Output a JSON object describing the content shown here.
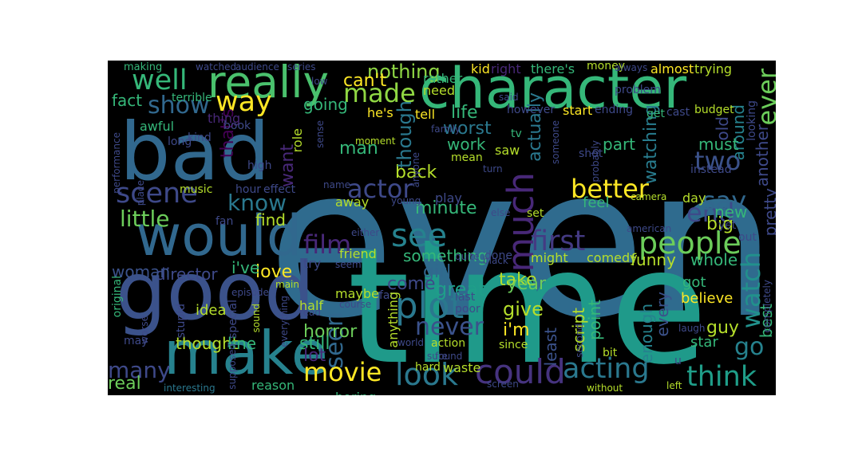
{
  "wordcloud": {
    "background": "#000000",
    "words": [
      {
        "text": "even",
        "color": "#2f6b8e"
      },
      {
        "text": "time",
        "color": "#1f9a8a"
      },
      {
        "text": "bad",
        "color": "#31688e"
      },
      {
        "text": "good",
        "color": "#3b528b"
      },
      {
        "text": "would",
        "color": "#31688e"
      },
      {
        "text": "character",
        "color": "#35b779"
      },
      {
        "text": "really",
        "color": "#4ac16d"
      },
      {
        "text": "make",
        "color": "#26828e"
      },
      {
        "text": "well",
        "color": "#35b779"
      },
      {
        "text": "way",
        "color": "#fde725"
      },
      {
        "text": "show",
        "color": "#31688e"
      },
      {
        "text": "scene",
        "color": "#3e4989"
      },
      {
        "text": "know",
        "color": "#2a788e"
      },
      {
        "text": "little",
        "color": "#6ccd5a"
      },
      {
        "text": "made",
        "color": "#90d743"
      },
      {
        "text": "much",
        "color": "#482878"
      },
      {
        "text": "see",
        "color": "#26828e"
      },
      {
        "text": "plot",
        "color": "#2a788e"
      },
      {
        "text": "movie",
        "color": "#fde725"
      },
      {
        "text": "look",
        "color": "#2a788e"
      },
      {
        "text": "could",
        "color": "#46337f"
      },
      {
        "text": "acting",
        "color": "#2a788e"
      },
      {
        "text": "think",
        "color": "#1f9e89"
      },
      {
        "text": "people",
        "color": "#6ccd5a"
      },
      {
        "text": "first",
        "color": "#443a83"
      },
      {
        "text": "end",
        "color": "#3e4a89"
      },
      {
        "text": "say",
        "color": "#31688e"
      },
      {
        "text": "better",
        "color": "#fde725"
      },
      {
        "text": "two",
        "color": "#3b528b"
      },
      {
        "text": "ever",
        "color": "#6ccd5a"
      },
      {
        "text": "watch",
        "color": "#21918c"
      },
      {
        "text": "go",
        "color": "#26828e"
      },
      {
        "text": "actor",
        "color": "#3e4989"
      },
      {
        "text": "film",
        "color": "#482878"
      },
      {
        "text": "never",
        "color": "#3b528b"
      },
      {
        "text": "seen",
        "color": "#31688e"
      },
      {
        "text": "many",
        "color": "#3e4989"
      },
      {
        "text": "nothing",
        "color": "#8fd744"
      },
      {
        "text": "can't",
        "color": "#fde725"
      },
      {
        "text": "going",
        "color": "#35b779"
      },
      {
        "text": "fact",
        "color": "#35b779"
      },
      {
        "text": "worst",
        "color": "#2a788e"
      },
      {
        "text": "life",
        "color": "#35b779"
      },
      {
        "text": "work",
        "color": "#35b779"
      },
      {
        "text": "man",
        "color": "#35b779"
      },
      {
        "text": "back",
        "color": "#b5de2b"
      },
      {
        "text": "though",
        "color": "#2a788e"
      },
      {
        "text": "actually",
        "color": "#2a788e"
      },
      {
        "text": "part",
        "color": "#35b779"
      },
      {
        "text": "watching",
        "color": "#287c8e"
      },
      {
        "text": "want",
        "color": "#482878"
      },
      {
        "text": "that's",
        "color": "#440154"
      },
      {
        "text": "find",
        "color": "#b5de2b"
      },
      {
        "text": "minute",
        "color": "#35b779"
      },
      {
        "text": "something",
        "color": "#35b779"
      },
      {
        "text": "girl",
        "color": "#31688e"
      },
      {
        "text": "love",
        "color": "#fde725"
      },
      {
        "text": "director",
        "color": "#3e4989"
      },
      {
        "text": "woman",
        "color": "#3b528b"
      },
      {
        "text": "i've",
        "color": "#35b779"
      },
      {
        "text": "come",
        "color": "#3e4989"
      },
      {
        "text": "great",
        "color": "#1f9e89"
      },
      {
        "text": "take",
        "color": "#b5de2b"
      },
      {
        "text": "year",
        "color": "#6ccd5a"
      },
      {
        "text": "give",
        "color": "#b5de2b"
      },
      {
        "text": "i'm",
        "color": "#fde725"
      },
      {
        "text": "horror",
        "color": "#6ccd5a"
      },
      {
        "text": "still",
        "color": "#35b779"
      },
      {
        "text": "lot",
        "color": "#482878"
      },
      {
        "text": "real",
        "color": "#6ccd5a"
      },
      {
        "text": "thought",
        "color": "#b5de2b"
      },
      {
        "text": "line",
        "color": "#35b779"
      },
      {
        "text": "funny",
        "color": "#b5de2b"
      },
      {
        "text": "whole",
        "color": "#35b779"
      },
      {
        "text": "best",
        "color": "#35b779"
      },
      {
        "text": "guy",
        "color": "#b5de2b"
      },
      {
        "text": "enough",
        "color": "#26828e"
      },
      {
        "text": "every",
        "color": "#3b528b"
      },
      {
        "text": "point",
        "color": "#35b779"
      },
      {
        "text": "script",
        "color": "#b5de2b"
      },
      {
        "text": "least",
        "color": "#3b528b"
      },
      {
        "text": "around",
        "color": "#26828e"
      },
      {
        "text": "old",
        "color": "#3e4989"
      },
      {
        "text": "must",
        "color": "#35b779"
      },
      {
        "text": "pretty",
        "color": "#3e4989"
      },
      {
        "text": "another",
        "color": "#3e4989"
      },
      {
        "text": "new",
        "color": "#35b779"
      },
      {
        "text": "big",
        "color": "#b5de2b"
      },
      {
        "text": "believe",
        "color": "#fde725"
      },
      {
        "text": "got",
        "color": "#35b779"
      },
      {
        "text": "star",
        "color": "#35b779"
      },
      {
        "text": "interesting",
        "color": "#2a788e"
      },
      {
        "text": "reason",
        "color": "#35b779"
      },
      {
        "text": "boring",
        "color": "#35b779"
      },
      {
        "text": "original",
        "color": "#35b779"
      },
      {
        "text": "performance",
        "color": "#3e4989"
      },
      {
        "text": "music",
        "color": "#b5de2b"
      },
      {
        "text": "awful",
        "color": "#35b779"
      },
      {
        "text": "long",
        "color": "#3e4989"
      },
      {
        "text": "kind",
        "color": "#3e4989"
      },
      {
        "text": "thing",
        "color": "#482878"
      },
      {
        "text": "terrible",
        "color": "#35b779"
      },
      {
        "text": "making",
        "color": "#35b779"
      },
      {
        "text": "watched",
        "color": "#3e4989"
      },
      {
        "text": "audience",
        "color": "#3e4989"
      },
      {
        "text": "series",
        "color": "#3e4989"
      },
      {
        "text": "rather",
        "color": "#35b779"
      },
      {
        "text": "kid",
        "color": "#fde725"
      },
      {
        "text": "right",
        "color": "#482878"
      },
      {
        "text": "there's",
        "color": "#35b779"
      },
      {
        "text": "money",
        "color": "#b5de2b"
      },
      {
        "text": "always",
        "color": "#3e4989"
      },
      {
        "text": "almost",
        "color": "#fde725"
      },
      {
        "text": "trying",
        "color": "#b5de2b"
      },
      {
        "text": "need",
        "color": "#b5de2b"
      },
      {
        "text": "tell",
        "color": "#fde725"
      },
      {
        "text": "he's",
        "color": "#fde725"
      },
      {
        "text": "however",
        "color": "#3e4989"
      },
      {
        "text": "start",
        "color": "#fde725"
      },
      {
        "text": "ending",
        "color": "#3e4989"
      },
      {
        "text": "problem",
        "color": "#3e4989"
      },
      {
        "text": "get",
        "color": "#35b779"
      },
      {
        "text": "cast",
        "color": "#3e4989"
      },
      {
        "text": "budget",
        "color": "#b5de2b"
      },
      {
        "text": "looking",
        "color": "#3e4989"
      },
      {
        "text": "book",
        "color": "#3e4989"
      },
      {
        "text": "role",
        "color": "#b5de2b"
      },
      {
        "text": "sense",
        "color": "#3e4989"
      },
      {
        "text": "someone",
        "color": "#3e4989"
      },
      {
        "text": "probably",
        "color": "#3e4989"
      },
      {
        "text": "moment",
        "color": "#b5de2b"
      },
      {
        "text": "family",
        "color": "#3e4989"
      },
      {
        "text": "anyone",
        "color": "#3e4989"
      },
      {
        "text": "mean",
        "color": "#b5de2b"
      },
      {
        "text": "saw",
        "color": "#b5de2b"
      },
      {
        "text": "tv",
        "color": "#35b779"
      },
      {
        "text": "shot",
        "color": "#3e4989"
      },
      {
        "text": "turn",
        "color": "#3e4989"
      },
      {
        "text": "instead",
        "color": "#3e4989"
      },
      {
        "text": "high",
        "color": "#3e4989"
      },
      {
        "text": "effect",
        "color": "#3e4989"
      },
      {
        "text": "hour",
        "color": "#3e4989"
      },
      {
        "text": "place",
        "color": "#3e4989"
      },
      {
        "text": "name",
        "color": "#3e4989"
      },
      {
        "text": "away",
        "color": "#b5de2b"
      },
      {
        "text": "young",
        "color": "#3e4989"
      },
      {
        "text": "play",
        "color": "#3e4989"
      },
      {
        "text": "else",
        "color": "#3e4989"
      },
      {
        "text": "set",
        "color": "#b5de2b"
      },
      {
        "text": "feel",
        "color": "#35b779"
      },
      {
        "text": "camera",
        "color": "#b5de2b"
      },
      {
        "text": "day",
        "color": "#b5de2b"
      },
      {
        "text": "fan",
        "color": "#3e4989"
      },
      {
        "text": "either",
        "color": "#3e4989"
      },
      {
        "text": "seem",
        "color": "#3e4989"
      },
      {
        "text": "friend",
        "color": "#b5de2b"
      },
      {
        "text": "quite",
        "color": "#3e4989"
      },
      {
        "text": "done",
        "color": "#3e4989"
      },
      {
        "text": "black",
        "color": "#3e4989"
      },
      {
        "text": "might",
        "color": "#b5de2b"
      },
      {
        "text": "comedy",
        "color": "#b5de2b"
      },
      {
        "text": "american",
        "color": "#3e4989"
      },
      {
        "text": "yet",
        "color": "#3e4989"
      },
      {
        "text": "out",
        "color": "#3e4989"
      },
      {
        "text": "completely",
        "color": "#3e4989"
      },
      {
        "text": "main",
        "color": "#b5de2b"
      },
      {
        "text": "try",
        "color": "#3e4989"
      },
      {
        "text": "maybe",
        "color": "#b5de2b"
      },
      {
        "text": "far",
        "color": "#3e4989"
      },
      {
        "text": "last",
        "color": "#3e4989"
      },
      {
        "text": "poor",
        "color": "#3e4989"
      },
      {
        "text": "half",
        "color": "#b5de2b"
      },
      {
        "text": "read",
        "color": "#3e4989"
      },
      {
        "text": "idea",
        "color": "#b5de2b"
      },
      {
        "text": "sound",
        "color": "#b5de2b"
      },
      {
        "text": "everything",
        "color": "#3e4989"
      },
      {
        "text": "special",
        "color": "#3e4989"
      },
      {
        "text": "stupid",
        "color": "#3e4989"
      },
      {
        "text": "worse",
        "color": "#3e4989"
      },
      {
        "text": "may",
        "color": "#3e4989"
      },
      {
        "text": "anything",
        "color": "#b5de2b"
      },
      {
        "text": "world",
        "color": "#3e4989"
      },
      {
        "text": "action",
        "color": "#b5de2b"
      },
      {
        "text": "sure",
        "color": "#3e4989"
      },
      {
        "text": "since",
        "color": "#b5de2b"
      },
      {
        "text": "second",
        "color": "#3e4989"
      },
      {
        "text": "bit",
        "color": "#b5de2b"
      },
      {
        "text": "laugh",
        "color": "#3e4989"
      },
      {
        "text": "hard",
        "color": "#b5de2b"
      },
      {
        "text": "waste",
        "color": "#b5de2b"
      },
      {
        "text": "found",
        "color": "#3e4989"
      },
      {
        "text": "without",
        "color": "#b5de2b"
      },
      {
        "text": "left",
        "color": "#b5de2b"
      },
      {
        "text": "u",
        "color": "#3e4989"
      },
      {
        "text": "low",
        "color": "#3e4989"
      },
      {
        "text": "said",
        "color": "#3e4989"
      },
      {
        "text": "course",
        "color": "#3e4989"
      },
      {
        "text": "screen",
        "color": "#3e4989"
      },
      {
        "text": "episode",
        "color": "#3e4989"
      },
      {
        "text": "supposed",
        "color": "#3e4989"
      }
    ]
  }
}
